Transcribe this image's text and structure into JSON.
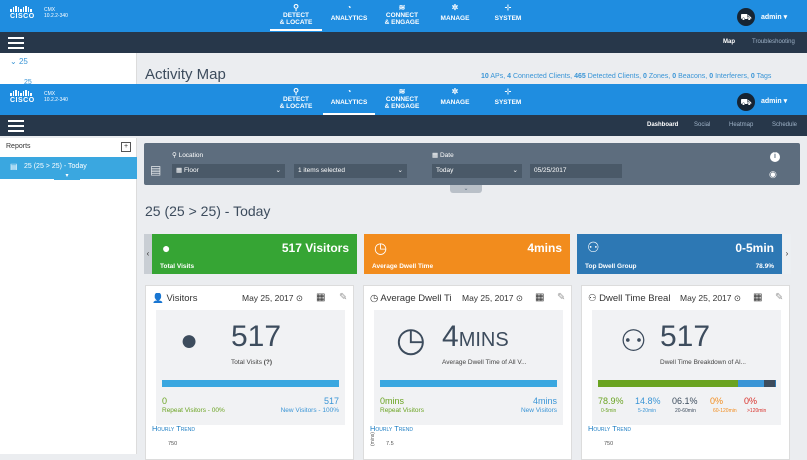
{
  "back_window": {
    "product_version": "10.2.2-340",
    "product": "CMX",
    "nav": [
      "DETECT & LOCATE",
      "ANALYTICS",
      "CONNECT & ENGAGE",
      "MANAGE",
      "SYSTEM"
    ],
    "user": "admin",
    "sublinks": [
      "Map",
      "Troubleshooting"
    ],
    "sidebar_item": "25",
    "sidebar_item2": "25",
    "page_title": "Activity Map",
    "stats": {
      "aps": "10",
      "aps_label": "APs,",
      "clients": "4",
      "clients_label": "Connected Clients,",
      "detected": "465",
      "detected_label": "Detected Clients,",
      "zones": "0",
      "zones_label": "Zones,",
      "beacons": "0",
      "beacons_label": "Beacons,",
      "interferers": "0",
      "interferers_label": "Interferers,",
      "tags": "0",
      "tags_label": "Tags"
    }
  },
  "front_window": {
    "product": "CMX",
    "product_version": "10.2.2-340",
    "nav": [
      {
        "label1": "DETECT",
        "label2": "& LOCATE",
        "icon": "pin-icon"
      },
      {
        "label1": "ANALYTICS",
        "label2": "",
        "icon": "gauge-icon"
      },
      {
        "label1": "CONNECT",
        "label2": "& ENGAGE",
        "icon": "wifi-icon"
      },
      {
        "label1": "MANAGE",
        "label2": "",
        "icon": "gear-icon"
      },
      {
        "label1": "SYSTEM",
        "label2": "",
        "icon": "sitemap-icon"
      }
    ],
    "user": "admin",
    "sublinks": [
      "Dashboard",
      "Social",
      "Heatmap",
      "Schedule"
    ],
    "sidebar_header": "Reports",
    "sidebar_item": "25 (25 > 25) - Today",
    "filters": {
      "location_label": "Location",
      "floor_value": "Floor",
      "items_value": "1 items selected",
      "date_label": "Date",
      "date_range": "Today",
      "date_value": "05/25/2017"
    },
    "report_title": "25 (25 > 25) - Today",
    "kpis": [
      {
        "value": "517 Visitors",
        "label": "Total Visits",
        "color": "#36a534"
      },
      {
        "value": "4mins",
        "label": "Average Dwell Time",
        "color": "#f28c1d"
      },
      {
        "value": "0-5min",
        "label": "Top Dwell Group",
        "extra": "78.9%",
        "color": "#2d78b4"
      }
    ],
    "cards": [
      {
        "title": "Visitors",
        "date": "May 25, 2017",
        "big": "517",
        "sub": "Total Visits",
        "sub_suffix": "(?)",
        "left_val": "0",
        "left_lbl": "Repeat Visitors - 00%",
        "right_val": "517",
        "right_lbl": "New Visitors - 100%",
        "trend": "Hourly Trend",
        "axis": "750"
      },
      {
        "title": "Average Dwell Ti",
        "date": "May 25, 2017",
        "big": "4",
        "big_unit": "MINS",
        "sub": "Average Dwell Time of All V...",
        "left_val": "0mins",
        "left_lbl": "Repeat Visitors",
        "right_val": "4mins",
        "right_lbl": "New Visitors",
        "trend": "Hourly Trend",
        "axis": "7.5",
        "axis_label": "(mins)"
      },
      {
        "title": "Dwell Time Breal",
        "date": "May 25, 2017",
        "big": "517",
        "sub": "Dwell Time Breakdown of Al...",
        "breakdown": [
          {
            "pct": "78.9%",
            "range": "0-5min",
            "color": "#6aa321",
            "share": 0.789
          },
          {
            "pct": "14.8%",
            "range": "5-20min",
            "color": "#3a95d6",
            "share": 0.148
          },
          {
            "pct": "06.1%",
            "range": "20-60min",
            "color": "#3d4c5d",
            "share": 0.061
          },
          {
            "pct": "0%",
            "range": "60-120min",
            "color": "#f28c1d",
            "share": 0
          },
          {
            "pct": "0%",
            "range": ">120min",
            "color": "#d9302a",
            "share": 0
          }
        ],
        "trend": "Hourly Trend",
        "axis": "750"
      }
    ]
  }
}
